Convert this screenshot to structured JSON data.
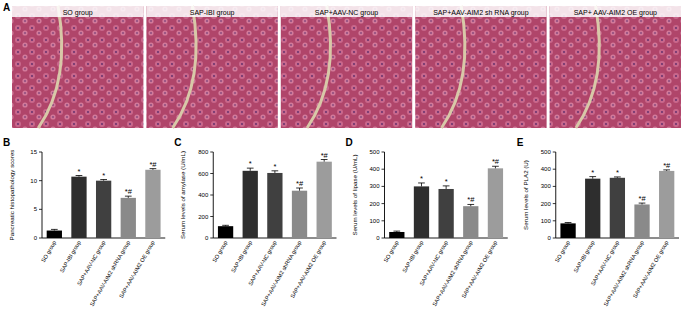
{
  "figure": {
    "panel": "A",
    "images": [
      "SO group",
      "SAP-IBI group",
      "SAP+AAV-NC group",
      "SAP+AAV-AIM2 sh RNA group",
      "SAP+ AAV-AIM2 OE group"
    ]
  },
  "chart_data": [
    {
      "type": "bar",
      "panel": "B",
      "y_label": "Pancreatic histopathology scores",
      "categories": [
        "SO group",
        "SAP-IBI group",
        "SAP+AAV-NC group",
        "SAP+AAV-AIM2 shRNA group",
        "SAP+AAV-AIM2 OE group"
      ],
      "values": [
        1.3,
        10.7,
        10.0,
        7.0,
        11.9
      ],
      "errors": [
        0.2,
        0.2,
        0.2,
        0.3,
        0.2
      ],
      "significance": [
        null,
        "*",
        "*",
        "*#",
        "*#"
      ],
      "colors": [
        "#000000",
        "#2e2e2e",
        "#404040",
        "#8a8a8a",
        "#9c9c9c"
      ],
      "ylim": [
        0,
        15
      ],
      "yticks": [
        0,
        5,
        10,
        15
      ]
    },
    {
      "type": "bar",
      "panel": "C",
      "y_label": "Serum levels of amylase (U/mL)",
      "categories": [
        "SO group",
        "SAP-IBI group",
        "SAP+AAV-NC group",
        "SAP+AAV-AIM2 shRNA group",
        "SAP+AAV-AIM2 OE group"
      ],
      "values": [
        110,
        625,
        605,
        440,
        710
      ],
      "errors": [
        8,
        25,
        20,
        25,
        20
      ],
      "significance": [
        null,
        "*",
        "*",
        "*#",
        "*#"
      ],
      "colors": [
        "#000000",
        "#2e2e2e",
        "#404040",
        "#8a8a8a",
        "#9c9c9c"
      ],
      "ylim": [
        0,
        800
      ],
      "yticks": [
        0,
        200,
        400,
        600,
        800
      ]
    },
    {
      "type": "bar",
      "panel": "D",
      "y_label": "Serum levels of lipase (U/mL)",
      "categories": [
        "SO group",
        "SAP-IBI group",
        "SAP+AAV-NC group",
        "SAP+AAV-AIM2 shRNA group",
        "SAP+AAV-AIM2 OE group"
      ],
      "values": [
        35,
        300,
        285,
        185,
        405
      ],
      "errors": [
        5,
        20,
        18,
        10,
        12
      ],
      "significance": [
        null,
        "*",
        "*",
        "*#",
        "*#"
      ],
      "colors": [
        "#000000",
        "#2e2e2e",
        "#404040",
        "#8a8a8a",
        "#9c9c9c"
      ],
      "ylim": [
        0,
        500
      ],
      "yticks": [
        0,
        100,
        200,
        300,
        400,
        500
      ]
    },
    {
      "type": "bar",
      "panel": "E",
      "y_label": "Serum levels of PLA2 (U)",
      "categories": [
        "SO group",
        "SAP-IBI group",
        "SAP+AAV-NC group",
        "SAP+AAV-AIM2 shRNA group",
        "SAP+AAV-AIM2 OE group"
      ],
      "values": [
        85,
        345,
        350,
        195,
        390
      ],
      "errors": [
        5,
        12,
        5,
        8,
        6
      ],
      "significance": [
        null,
        "*",
        "*",
        "*#",
        "*#"
      ],
      "colors": [
        "#000000",
        "#2e2e2e",
        "#404040",
        "#8a8a8a",
        "#9c9c9c"
      ],
      "ylim": [
        0,
        500
      ],
      "yticks": [
        0,
        100,
        200,
        300,
        400,
        500
      ]
    }
  ]
}
